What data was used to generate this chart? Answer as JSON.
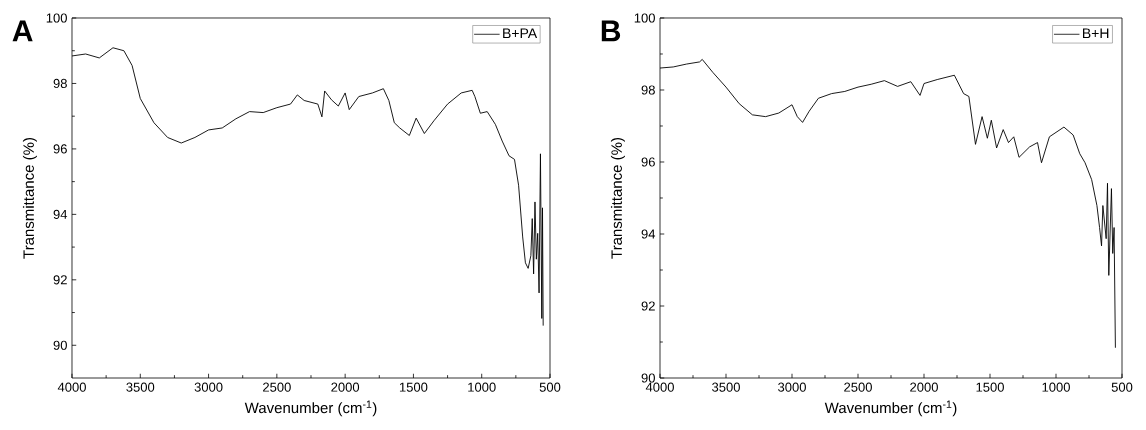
{
  "chart_data": [
    {
      "type": "line",
      "title": "A",
      "xlabel": "Wavenumber (cm$^{-1}$)",
      "ylabel": "Transmittance (%)",
      "xlim": [
        4000,
        500
      ],
      "ylim": [
        89,
        100
      ],
      "xticks": [
        4000,
        3500,
        3000,
        2500,
        2000,
        1500,
        1000,
        500
      ],
      "yticks": [
        90,
        92,
        94,
        96,
        98,
        100
      ],
      "legend": "top right",
      "marker": "none",
      "x": [
        4000,
        3900,
        3800,
        3700,
        3620,
        3560,
        3500,
        3400,
        3300,
        3200,
        3100,
        3000,
        2900,
        2800,
        2700,
        2600,
        2500,
        2400,
        2350,
        2300,
        2200,
        2170,
        2150,
        2100,
        2050,
        2000,
        1970,
        1900,
        1800,
        1720,
        1680,
        1640,
        1600,
        1530,
        1480,
        1420,
        1350,
        1250,
        1150,
        1070,
        1050,
        1010,
        960,
        900,
        850,
        800,
        760,
        730,
        700,
        680,
        660,
        640,
        630,
        620,
        610,
        600,
        590,
        580,
        570,
        560,
        555,
        550
      ],
      "series": [
        {
          "name": "B+PA",
          "color": "#000000",
          "values": [
            98.84,
            98.9,
            98.78,
            99.09,
            99.0,
            98.55,
            97.54,
            96.8,
            96.35,
            96.18,
            96.35,
            96.58,
            96.64,
            96.92,
            97.14,
            97.11,
            97.26,
            97.37,
            97.65,
            97.48,
            97.37,
            96.98,
            97.77,
            97.5,
            97.31,
            97.71,
            97.2,
            97.6,
            97.71,
            97.84,
            97.48,
            96.8,
            96.64,
            96.41,
            96.94,
            96.47,
            96.86,
            97.37,
            97.71,
            97.79,
            97.6,
            97.09,
            97.14,
            96.75,
            96.24,
            95.79,
            95.68,
            94.89,
            93.31,
            92.52,
            92.35,
            92.74,
            93.87,
            92.18,
            94.38,
            92.63,
            93.42,
            91.6,
            95.85,
            90.82,
            94.2,
            90.6
          ]
        }
      ]
    },
    {
      "type": "line",
      "title": "B",
      "xlabel": "Wavenumber (cm$^{-1}$)",
      "ylabel": "Transmittance (%)",
      "xlim": [
        4000,
        500
      ],
      "ylim": [
        90,
        100
      ],
      "xticks": [
        4000,
        3500,
        3000,
        2500,
        2000,
        1500,
        1000,
        500
      ],
      "yticks": [
        90,
        92,
        94,
        96,
        98,
        100
      ],
      "legend": "top right",
      "marker": "none",
      "x": [
        4000,
        3900,
        3800,
        3700,
        3680,
        3600,
        3500,
        3400,
        3300,
        3200,
        3100,
        3000,
        2960,
        2920,
        2870,
        2800,
        2700,
        2600,
        2500,
        2400,
        2300,
        2200,
        2100,
        2030,
        2000,
        1900,
        1770,
        1700,
        1660,
        1610,
        1560,
        1520,
        1490,
        1450,
        1400,
        1360,
        1320,
        1280,
        1200,
        1140,
        1110,
        1050,
        940,
        870,
        820,
        780,
        730,
        690,
        670,
        655,
        645,
        620,
        610,
        600,
        580,
        570,
        560,
        550
      ],
      "series": [
        {
          "name": "B+H",
          "color": "#000000",
          "values": [
            98.61,
            98.64,
            98.72,
            98.78,
            98.85,
            98.49,
            98.08,
            97.62,
            97.31,
            97.26,
            97.36,
            97.59,
            97.26,
            97.1,
            97.41,
            97.77,
            97.9,
            97.96,
            98.08,
            98.16,
            98.26,
            98.1,
            98.23,
            97.85,
            98.18,
            98.29,
            98.41,
            97.9,
            97.82,
            96.49,
            97.26,
            96.66,
            97.16,
            96.39,
            96.9,
            96.54,
            96.7,
            96.13,
            96.42,
            96.54,
            95.98,
            96.7,
            96.97,
            96.75,
            96.23,
            95.98,
            95.51,
            94.79,
            94.18,
            93.67,
            94.79,
            93.87,
            95.41,
            92.85,
            95.26,
            93.46,
            94.18,
            90.84
          ]
        }
      ]
    }
  ]
}
